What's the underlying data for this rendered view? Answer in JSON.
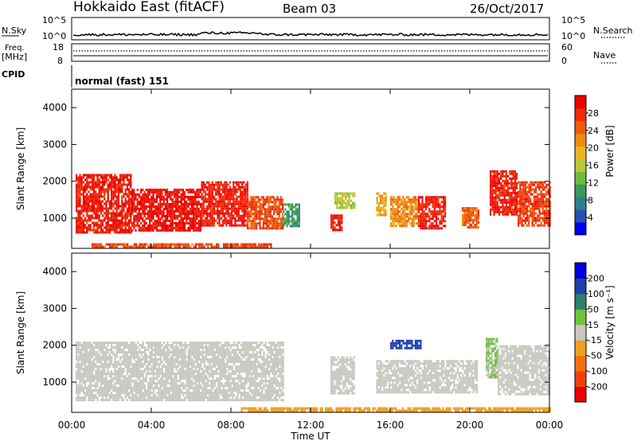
{
  "header": {
    "station": "Hokkaido East (fitACF)",
    "beam": "Beam 03",
    "date": "26/Oct/2017"
  },
  "noise_panel": {
    "left_label": "N.Sky",
    "right_label": "N.Search",
    "right_ticks": [
      "10^5",
      "10^0"
    ],
    "left_ticks": [
      "10^5",
      "10^0"
    ]
  },
  "freq_panel": {
    "left_label_line1": "Freq.",
    "left_label_line2": "[MHz]",
    "left_ticks": [
      "18",
      "8"
    ],
    "right_label": "Nave",
    "right_ticks": [
      "60",
      "0"
    ],
    "cpid_label": "CPID",
    "cpid_value": "normal (fast) 151"
  },
  "power_panel": {
    "ylabel": "Slant Range [km]",
    "yticks": [
      "4000",
      "3000",
      "2000",
      "1000"
    ],
    "colorbar_label": "Power [dB]",
    "colorbar_ticks": [
      "28",
      "24",
      "20",
      "16",
      "12",
      "8",
      "4"
    ],
    "colors": [
      "#0000ee",
      "#2a4fb8",
      "#2f7f88",
      "#3a9a60",
      "#6dbd3c",
      "#b8c838",
      "#e8b820",
      "#f08a10",
      "#f05a0a",
      "#ee2a08",
      "#ee0000"
    ]
  },
  "velocity_panel": {
    "ylabel": "Slant Range [km]",
    "yticks": [
      "4000",
      "3000",
      "2000",
      "1000"
    ],
    "colorbar_label": "Velocity [m s⁻¹]",
    "colorbar_ticks": [
      "200",
      "100",
      "50",
      "15",
      "-15",
      "-50",
      "-100",
      "-200"
    ],
    "colors": [
      "#0000dd",
      "#1f3fae",
      "#2f7f6a",
      "#6fc23a",
      "#c8c8c0",
      "#f0a020",
      "#f07010",
      "#f04010",
      "#ee0000"
    ]
  },
  "x_axis": {
    "label": "Time UT",
    "ticks": [
      "00:00",
      "04:00",
      "08:00",
      "12:00",
      "16:00",
      "20:00",
      "00:00"
    ]
  },
  "chart_data": {
    "type": "heatmap",
    "title": "Hokkaido East (fitACF)",
    "subtitle": "Beam 03",
    "date": "26/Oct/2017",
    "xlabel": "Time UT",
    "ylabel": "Slant Range [km]",
    "xlim_hours": [
      0,
      24
    ],
    "ylim_km": [
      180,
      4500
    ],
    "power_db_range": [
      0,
      32
    ],
    "velocity_range": [
      -250,
      250
    ],
    "power_echo_regions": [
      {
        "t0": 0.2,
        "t1": 3.0,
        "r0": 600,
        "r1": 2200,
        "db": 29
      },
      {
        "t0": 3.0,
        "t1": 6.5,
        "r0": 650,
        "r1": 1800,
        "db": 30
      },
      {
        "t0": 6.5,
        "t1": 8.8,
        "r0": 800,
        "r1": 2000,
        "db": 29
      },
      {
        "t0": 8.8,
        "t1": 10.6,
        "r0": 700,
        "r1": 1600,
        "db": 26
      },
      {
        "t0": 10.6,
        "t1": 11.4,
        "r0": 800,
        "r1": 1400,
        "db": 10
      },
      {
        "t0": 13.0,
        "t1": 13.6,
        "r0": 700,
        "r1": 1100,
        "db": 29
      },
      {
        "t0": 13.2,
        "t1": 14.2,
        "r0": 1300,
        "r1": 1700,
        "db": 16
      },
      {
        "t0": 15.3,
        "t1": 15.8,
        "r0": 1100,
        "r1": 1700,
        "db": 20
      },
      {
        "t0": 16.0,
        "t1": 17.4,
        "r0": 800,
        "r1": 1600,
        "db": 22
      },
      {
        "t0": 17.4,
        "t1": 18.8,
        "r0": 700,
        "r1": 1600,
        "db": 29
      },
      {
        "t0": 19.6,
        "t1": 20.4,
        "r0": 750,
        "r1": 1300,
        "db": 25
      },
      {
        "t0": 21.0,
        "t1": 22.4,
        "r0": 1100,
        "r1": 2300,
        "db": 29
      },
      {
        "t0": 22.4,
        "t1": 24.0,
        "r0": 800,
        "r1": 2000,
        "db": 27
      },
      {
        "t0": 1.0,
        "t1": 10.0,
        "r0": 200,
        "r1": 320,
        "db": 26
      }
    ],
    "velocity_echo_regions": [
      {
        "t0": 0.2,
        "t1": 10.6,
        "r0": 500,
        "r1": 2100,
        "v": 0
      },
      {
        "t0": 13.0,
        "t1": 14.2,
        "r0": 700,
        "r1": 1700,
        "v": 0
      },
      {
        "t0": 15.3,
        "t1": 20.4,
        "r0": 700,
        "r1": 1600,
        "v": 0
      },
      {
        "t0": 16.0,
        "t1": 17.5,
        "r0": 1950,
        "r1": 2150,
        "v": 160
      },
      {
        "t0": 20.8,
        "t1": 21.4,
        "r0": 1100,
        "r1": 2200,
        "v": 30
      },
      {
        "t0": 21.4,
        "t1": 24.0,
        "r0": 700,
        "r1": 2000,
        "v": 0
      },
      {
        "t0": 8.5,
        "t1": 24.0,
        "r0": 200,
        "r1": 320,
        "v": -40
      }
    ]
  }
}
